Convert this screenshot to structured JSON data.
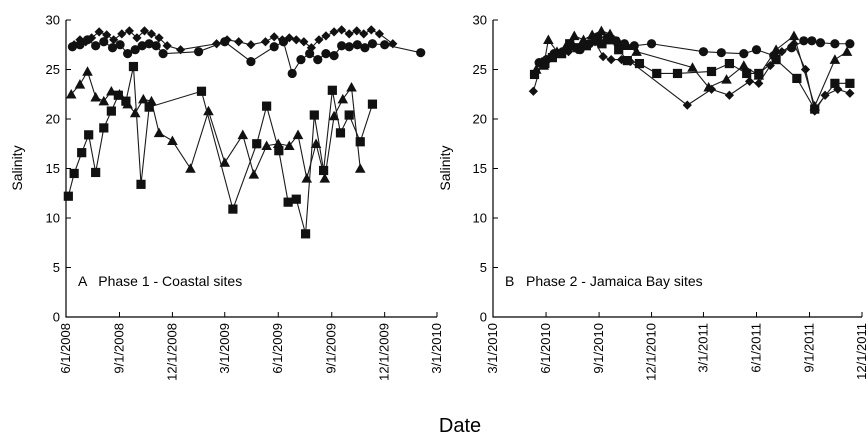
{
  "figure": {
    "xlabel": "Date"
  },
  "chart_data": [
    {
      "type": "line",
      "panel_label": "A   Phase 1 - Coastal sites",
      "ylabel": "Salinity",
      "xlabel": "",
      "ylim": [
        0,
        30
      ],
      "yticks": [
        0,
        5,
        10,
        15,
        20,
        25,
        30
      ],
      "xlim": [
        "2008-06-01",
        "2010-03-01"
      ],
      "xticks": [
        "2008-06-01",
        "2008-09-01",
        "2008-12-01",
        "2009-03-01",
        "2009-06-01",
        "2009-09-01",
        "2009-12-01",
        "2010-03-01"
      ],
      "xtick_labels": [
        "6/1/2008",
        "9/1/2008",
        "12/1/2008",
        "3/1/2009",
        "6/1/2009",
        "9/1/2009",
        "12/1/2009",
        "3/1/2010"
      ],
      "grid": false,
      "series": [
        {
          "marker": "diamond",
          "points": [
            [
              "2008-06-15",
              27.5
            ],
            [
              "2008-06-25",
              28.0
            ],
            [
              "2008-07-05",
              27.8
            ],
            [
              "2008-07-15",
              28.2
            ],
            [
              "2008-07-28",
              28.8
            ],
            [
              "2008-08-10",
              28.5
            ],
            [
              "2008-08-22",
              28.0
            ],
            [
              "2008-09-05",
              28.6
            ],
            [
              "2008-09-18",
              28.9
            ],
            [
              "2008-10-01",
              28.2
            ],
            [
              "2008-10-14",
              28.9
            ],
            [
              "2008-10-26",
              28.6
            ],
            [
              "2008-11-08",
              28.2
            ],
            [
              "2008-11-22",
              27.4
            ],
            [
              "2008-12-15",
              27.0
            ],
            [
              "2009-02-15",
              27.6
            ],
            [
              "2009-03-05",
              28.0
            ],
            [
              "2009-03-25",
              27.8
            ],
            [
              "2009-04-15",
              27.5
            ],
            [
              "2009-05-10",
              27.8
            ],
            [
              "2009-05-25",
              28.3
            ],
            [
              "2009-06-08",
              28.0
            ],
            [
              "2009-06-20",
              28.2
            ],
            [
              "2009-07-02",
              28.0
            ],
            [
              "2009-07-15",
              27.8
            ],
            [
              "2009-07-28",
              27.2
            ],
            [
              "2009-08-10",
              28.0
            ],
            [
              "2009-08-22",
              28.4
            ],
            [
              "2009-09-05",
              28.8
            ],
            [
              "2009-09-18",
              29.0
            ],
            [
              "2009-10-01",
              28.6
            ],
            [
              "2009-10-14",
              28.9
            ],
            [
              "2009-10-26",
              28.6
            ],
            [
              "2009-11-08",
              29.0
            ],
            [
              "2009-11-22",
              28.6
            ],
            [
              "2009-12-15",
              27.6
            ]
          ]
        },
        {
          "marker": "circle",
          "points": [
            [
              "2008-06-12",
              27.3
            ],
            [
              "2008-06-25",
              27.5
            ],
            [
              "2008-07-08",
              28.0
            ],
            [
              "2008-07-22",
              27.4
            ],
            [
              "2008-08-05",
              27.8
            ],
            [
              "2008-08-20",
              27.2
            ],
            [
              "2008-09-02",
              27.5
            ],
            [
              "2008-09-15",
              26.6
            ],
            [
              "2008-09-28",
              27.0
            ],
            [
              "2008-10-10",
              27.4
            ],
            [
              "2008-10-22",
              27.6
            ],
            [
              "2008-11-03",
              27.4
            ],
            [
              "2008-11-15",
              26.6
            ],
            [
              "2009-01-15",
              26.8
            ],
            [
              "2009-03-01",
              27.8
            ],
            [
              "2009-04-15",
              25.8
            ],
            [
              "2009-05-25",
              27.3
            ],
            [
              "2009-06-10",
              27.8
            ],
            [
              "2009-06-25",
              24.6
            ],
            [
              "2009-07-10",
              26.0
            ],
            [
              "2009-07-25",
              26.6
            ],
            [
              "2009-08-08",
              26.0
            ],
            [
              "2009-08-22",
              26.6
            ],
            [
              "2009-09-05",
              26.4
            ],
            [
              "2009-09-18",
              27.4
            ],
            [
              "2009-10-01",
              27.3
            ],
            [
              "2009-10-15",
              27.5
            ],
            [
              "2009-10-28",
              27.2
            ],
            [
              "2009-11-10",
              27.6
            ],
            [
              "2009-12-01",
              27.5
            ],
            [
              "2010-02-01",
              26.7
            ]
          ]
        },
        {
          "marker": "triangle",
          "points": [
            [
              "2008-06-10",
              22.5
            ],
            [
              "2008-06-25",
              23.5
            ],
            [
              "2008-07-08",
              24.8
            ],
            [
              "2008-07-22",
              22.2
            ],
            [
              "2008-08-05",
              21.8
            ],
            [
              "2008-08-18",
              22.8
            ],
            [
              "2008-09-01",
              22.5
            ],
            [
              "2008-09-15",
              21.5
            ],
            [
              "2008-09-28",
              20.6
            ],
            [
              "2008-10-12",
              22.0
            ],
            [
              "2008-10-26",
              21.8
            ],
            [
              "2008-11-08",
              18.6
            ],
            [
              "2008-12-01",
              17.8
            ],
            [
              "2009-01-01",
              15.0
            ],
            [
              "2009-02-01",
              20.8
            ],
            [
              "2009-03-01",
              15.6
            ],
            [
              "2009-04-01",
              18.4
            ],
            [
              "2009-04-20",
              14.4
            ],
            [
              "2009-05-12",
              17.3
            ],
            [
              "2009-06-01",
              17.5
            ],
            [
              "2009-06-20",
              17.3
            ],
            [
              "2009-07-05",
              18.4
            ],
            [
              "2009-07-20",
              14.0
            ],
            [
              "2009-08-05",
              17.5
            ],
            [
              "2009-08-20",
              14.0
            ],
            [
              "2009-09-05",
              20.3
            ],
            [
              "2009-09-20",
              22.0
            ],
            [
              "2009-10-05",
              23.2
            ],
            [
              "2009-10-20",
              15.0
            ]
          ]
        },
        {
          "marker": "square",
          "points": [
            [
              "2008-06-05",
              12.2
            ],
            [
              "2008-06-15",
              14.5
            ],
            [
              "2008-06-28",
              16.6
            ],
            [
              "2008-07-10",
              18.4
            ],
            [
              "2008-07-22",
              14.6
            ],
            [
              "2008-08-05",
              19.1
            ],
            [
              "2008-08-18",
              20.8
            ],
            [
              "2008-08-30",
              22.4
            ],
            [
              "2008-09-12",
              21.8
            ],
            [
              "2008-09-25",
              25.3
            ],
            [
              "2008-10-08",
              13.4
            ],
            [
              "2008-10-22",
              21.2
            ],
            [
              "2009-01-20",
              22.8
            ],
            [
              "2009-03-15",
              10.9
            ],
            [
              "2009-04-25",
              17.5
            ],
            [
              "2009-05-12",
              21.3
            ],
            [
              "2009-06-02",
              16.8
            ],
            [
              "2009-06-18",
              11.6
            ],
            [
              "2009-07-02",
              11.9
            ],
            [
              "2009-07-18",
              8.4
            ],
            [
              "2009-08-02",
              20.4
            ],
            [
              "2009-08-18",
              14.8
            ],
            [
              "2009-09-02",
              22.9
            ],
            [
              "2009-09-16",
              18.6
            ],
            [
              "2009-10-01",
              20.4
            ],
            [
              "2009-10-20",
              17.7
            ],
            [
              "2009-11-10",
              21.5
            ]
          ]
        }
      ]
    },
    {
      "type": "line",
      "panel_label": "B   Phase 2 - Jamaica Bay sites",
      "ylabel": "Salinity",
      "xlabel": "",
      "ylim": [
        0,
        30
      ],
      "yticks": [
        0,
        5,
        10,
        15,
        20,
        25,
        30
      ],
      "xlim": [
        "2010-03-01",
        "2011-12-01"
      ],
      "xticks": [
        "2010-03-01",
        "2010-06-01",
        "2010-09-01",
        "2010-12-01",
        "2011-03-01",
        "2011-06-01",
        "2011-09-01",
        "2011-12-01"
      ],
      "xtick_labels": [
        "3/1/2010",
        "6/1/2010",
        "9/1/2010",
        "12/1/2010",
        "3/1/2011",
        "6/1/2011",
        "9/1/2011",
        "12/1/2011"
      ],
      "grid": false,
      "series": [
        {
          "marker": "diamond",
          "points": [
            [
              "2010-05-10",
              22.8
            ],
            [
              "2010-05-25",
              25.8
            ],
            [
              "2010-06-10",
              26.2
            ],
            [
              "2010-06-25",
              26.6
            ],
            [
              "2010-07-10",
              26.8
            ],
            [
              "2010-07-25",
              27.0
            ],
            [
              "2010-08-10",
              27.4
            ],
            [
              "2010-08-25",
              27.8
            ],
            [
              "2010-09-08",
              26.3
            ],
            [
              "2010-09-22",
              26.0
            ],
            [
              "2010-10-10",
              26.0
            ],
            [
              "2010-10-25",
              25.8
            ],
            [
              "2011-02-01",
              21.4
            ],
            [
              "2011-03-15",
              23.0
            ],
            [
              "2011-04-15",
              22.4
            ],
            [
              "2011-05-20",
              23.8
            ],
            [
              "2011-06-05",
              23.6
            ],
            [
              "2011-06-25",
              25.4
            ],
            [
              "2011-07-15",
              26.8
            ],
            [
              "2011-08-05",
              27.6
            ],
            [
              "2011-08-25",
              25.0
            ],
            [
              "2011-09-10",
              20.8
            ],
            [
              "2011-09-28",
              22.4
            ],
            [
              "2011-10-20",
              23.0
            ],
            [
              "2011-11-10",
              22.6
            ]
          ]
        },
        {
          "marker": "circle",
          "points": [
            [
              "2010-05-20",
              25.7
            ],
            [
              "2010-06-02",
              26.0
            ],
            [
              "2010-06-15",
              26.6
            ],
            [
              "2010-06-30",
              26.8
            ],
            [
              "2010-07-15",
              27.4
            ],
            [
              "2010-07-30",
              27.0
            ],
            [
              "2010-08-15",
              27.6
            ],
            [
              "2010-08-30",
              28.3
            ],
            [
              "2010-09-15",
              28.2
            ],
            [
              "2010-09-30",
              27.9
            ],
            [
              "2010-10-15",
              27.6
            ],
            [
              "2010-11-01",
              27.4
            ],
            [
              "2010-12-01",
              27.6
            ],
            [
              "2011-03-01",
              26.8
            ],
            [
              "2011-04-01",
              26.7
            ],
            [
              "2011-05-10",
              26.6
            ],
            [
              "2011-06-01",
              27.0
            ],
            [
              "2011-07-01",
              26.4
            ],
            [
              "2011-08-01",
              27.2
            ],
            [
              "2011-08-22",
              27.9
            ],
            [
              "2011-09-05",
              27.9
            ],
            [
              "2011-09-20",
              27.7
            ],
            [
              "2011-10-15",
              27.6
            ],
            [
              "2011-11-10",
              27.6
            ]
          ]
        },
        {
          "marker": "triangle",
          "points": [
            [
              "2010-05-15",
              25.0
            ],
            [
              "2010-05-28",
              25.4
            ],
            [
              "2010-06-05",
              28.0
            ],
            [
              "2010-06-20",
              26.8
            ],
            [
              "2010-07-05",
              27.3
            ],
            [
              "2010-07-20",
              28.4
            ],
            [
              "2010-08-05",
              28.0
            ],
            [
              "2010-08-20",
              28.5
            ],
            [
              "2010-09-05",
              28.9
            ],
            [
              "2010-09-20",
              28.6
            ],
            [
              "2010-10-05",
              27.8
            ],
            [
              "2010-10-20",
              27.4
            ],
            [
              "2010-11-05",
              26.8
            ],
            [
              "2011-02-10",
              25.2
            ],
            [
              "2011-03-10",
              23.2
            ],
            [
              "2011-04-10",
              24.0
            ],
            [
              "2011-05-10",
              25.4
            ],
            [
              "2011-06-05",
              24.4
            ],
            [
              "2011-07-05",
              27.0
            ],
            [
              "2011-08-05",
              28.4
            ],
            [
              "2011-09-10",
              21.3
            ],
            [
              "2011-10-15",
              26.0
            ],
            [
              "2011-11-05",
              26.8
            ]
          ]
        },
        {
          "marker": "square",
          "points": [
            [
              "2010-05-12",
              24.5
            ],
            [
              "2010-05-30",
              25.6
            ],
            [
              "2010-06-12",
              26.2
            ],
            [
              "2010-06-28",
              26.6
            ],
            [
              "2010-07-12",
              27.6
            ],
            [
              "2010-07-26",
              27.2
            ],
            [
              "2010-08-10",
              27.4
            ],
            [
              "2010-08-25",
              27.9
            ],
            [
              "2010-09-06",
              27.6
            ],
            [
              "2010-09-20",
              28.0
            ],
            [
              "2010-10-05",
              27.0
            ],
            [
              "2010-10-20",
              25.9
            ],
            [
              "2010-11-10",
              25.6
            ],
            [
              "2010-12-10",
              24.6
            ],
            [
              "2011-01-15",
              24.6
            ],
            [
              "2011-03-15",
              24.8
            ],
            [
              "2011-04-15",
              25.6
            ],
            [
              "2011-05-15",
              24.6
            ],
            [
              "2011-06-05",
              24.6
            ],
            [
              "2011-07-05",
              26.0
            ],
            [
              "2011-08-10",
              24.1
            ],
            [
              "2011-09-10",
              21.0
            ],
            [
              "2011-10-15",
              23.6
            ],
            [
              "2011-11-10",
              23.6
            ]
          ]
        }
      ]
    }
  ]
}
